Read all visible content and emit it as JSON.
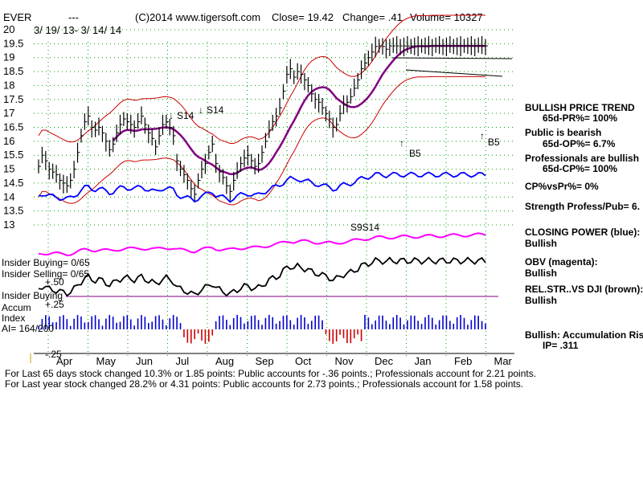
{
  "header": {
    "ticker": "EVER",
    "dashes": "---",
    "copyright": "(C)2014 www.tigersoft.com",
    "close": "Close=  19.42",
    "change": "Change= .41",
    "volume": "Volume= 10327",
    "date_range": "3/ 19/ 13- 3/ 14/ 14"
  },
  "y_axis_labels": [
    "20",
    "19.5",
    "19",
    "18.5",
    "18",
    "17.5",
    "17",
    "16.5",
    "16",
    "15.5",
    "15",
    "14.5",
    "14",
    "13.5",
    "13"
  ],
  "x_axis_labels": [
    "Apr",
    "May",
    "Jun",
    "Jul",
    "Aug",
    "Sep",
    "Oct",
    "Nov",
    "Dec",
    "Jan",
    "Feb",
    "Mar"
  ],
  "signals": {
    "s14_a": "S14",
    "s14_b": "S14",
    "b5_a": "B5",
    "b5_b": "B5",
    "cluster": "S9S14"
  },
  "left_labels": {
    "insider_buying": "Insider Buying= 0/65",
    "insider_selling": "Insider Selling= 0/65",
    "insider_buying2": "Insider Buying",
    "plus50": "+.50",
    "accum": "Accum",
    "plus25": "+.25",
    "index": "Index",
    "ai": "AI= 164/200",
    "minus25": "-.25"
  },
  "right_panel": {
    "trend_title": "BULLISH PRICE TREND",
    "pr": "65d-PR%= 100%",
    "public": "Public is bearish",
    "op": "65d-OP%= 6.7%",
    "pros": "Professionals are bullish",
    "cp": "65d-CP%= 100%",
    "cpvspr": "CP%vsPr%=  0%",
    "strength": "Strength Profess/Pub= 6.",
    "cp_title": "CLOSING POWER (blue):",
    "cp_val": "Bullish",
    "obv_title": "OBV (magenta):",
    "obv_val": "Bullish",
    "rs_title": "REL.STR..VS DJI (brown):",
    "rs_val": "Bullish",
    "accum_title": "Bullish: Accumulation Risi",
    "ip": "IP=  .311"
  },
  "footer": {
    "line1": "For Last 65 days stock changed  10.3% or  1.85 points:  Public accounts for -.36 points.;  Professionals account for  2.21 points.",
    "line2": "For Last year stock changed  28.2% or  4.31 points:  Public accounts for  2.73 points.;  Professionals account for  1.58 points."
  },
  "colors": {
    "price_bars": "#000000",
    "bollinger": "#cc0000",
    "ma": "#800080",
    "closing_power": "#0000ff",
    "obv": "#ff00ff",
    "rel_strength": "#000000",
    "accum_pos": "#0000cc",
    "accum_neg": "#cc0000",
    "grid": "#00a000"
  },
  "chart_data": {
    "type": "bar",
    "title": "EVER",
    "x_categories": [
      "Apr",
      "May",
      "Jun",
      "Jul",
      "Aug",
      "Sep",
      "Oct",
      "Nov",
      "Dec",
      "Jan",
      "Feb",
      "Mar"
    ],
    "ylim": [
      13,
      20
    ],
    "series": [
      {
        "name": "Close",
        "x": [
          0,
          2,
          4,
          6,
          8,
          10,
          12,
          14,
          16,
          18,
          20,
          22,
          24,
          26,
          28,
          30,
          32,
          34,
          36,
          38,
          40,
          42,
          44,
          46,
          48,
          50,
          52,
          54,
          56,
          58,
          60,
          62,
          64,
          66,
          68,
          70,
          72,
          74,
          76,
          78,
          80,
          82,
          84,
          86,
          88,
          90,
          92,
          94,
          96,
          98,
          100,
          102,
          104,
          106,
          108,
          110,
          112,
          114,
          116,
          118,
          120,
          122,
          124,
          126,
          128,
          130,
          132,
          134,
          136,
          138,
          140,
          142,
          144,
          146,
          148,
          150,
          152,
          154,
          156,
          158,
          160,
          162,
          164,
          166,
          168,
          170,
          172,
          174,
          176,
          178,
          180,
          182,
          184,
          186,
          188,
          190,
          192,
          194,
          196,
          198,
          200,
          202,
          204,
          206,
          208,
          210,
          212,
          214,
          216,
          218,
          220,
          222,
          224,
          226,
          228,
          230,
          232,
          234,
          236,
          238,
          240,
          242,
          244,
          246,
          248,
          250,
          252
        ],
        "values": [
          15.1,
          15.5,
          15.3,
          15.0,
          14.9,
          14.8,
          14.6,
          14.5,
          14.4,
          14.6,
          15.0,
          15.6,
          16.2,
          16.7,
          16.9,
          16.5,
          16.4,
          16.5,
          16.3,
          16.0,
          15.7,
          15.9,
          16.3,
          16.6,
          16.8,
          16.7,
          16.6,
          16.5,
          16.7,
          16.9,
          16.6,
          16.3,
          16.1,
          15.8,
          16.2,
          16.6,
          16.7,
          16.5,
          16.2,
          15.3,
          15.0,
          14.8,
          14.6,
          14.3,
          14.1,
          14.6,
          15.0,
          15.2,
          15.6,
          15.9,
          15.2,
          14.9,
          14.7,
          14.4,
          14.2,
          14.6,
          14.9,
          15.2,
          15.4,
          15.5,
          15.3,
          15.1,
          15.2,
          15.6,
          16.0,
          16.4,
          16.7,
          16.9,
          17.2,
          17.8,
          18.4,
          18.6,
          18.3,
          18.5,
          18.4,
          18.2,
          18.0,
          17.7,
          17.5,
          17.4,
          17.2,
          17.0,
          16.8,
          16.5,
          16.6,
          17.0,
          17.3,
          17.4,
          17.6,
          17.9,
          18.2,
          18.6,
          18.8,
          19.0,
          19.2,
          19.4,
          19.42,
          19.4,
          19.3,
          19.42,
          19.42,
          19.42,
          19.42,
          19.42,
          19.42,
          19.42,
          19.42,
          19.42,
          19.42,
          19.42,
          19.42,
          19.42,
          19.42,
          19.42,
          19.42,
          19.42,
          19.42,
          19.42,
          19.42,
          19.42,
          19.42,
          19.42,
          19.42,
          19.42,
          19.42,
          19.42,
          19.42
        ]
      }
    ],
    "xlabel": "",
    "ylabel": "",
    "grid": true
  }
}
